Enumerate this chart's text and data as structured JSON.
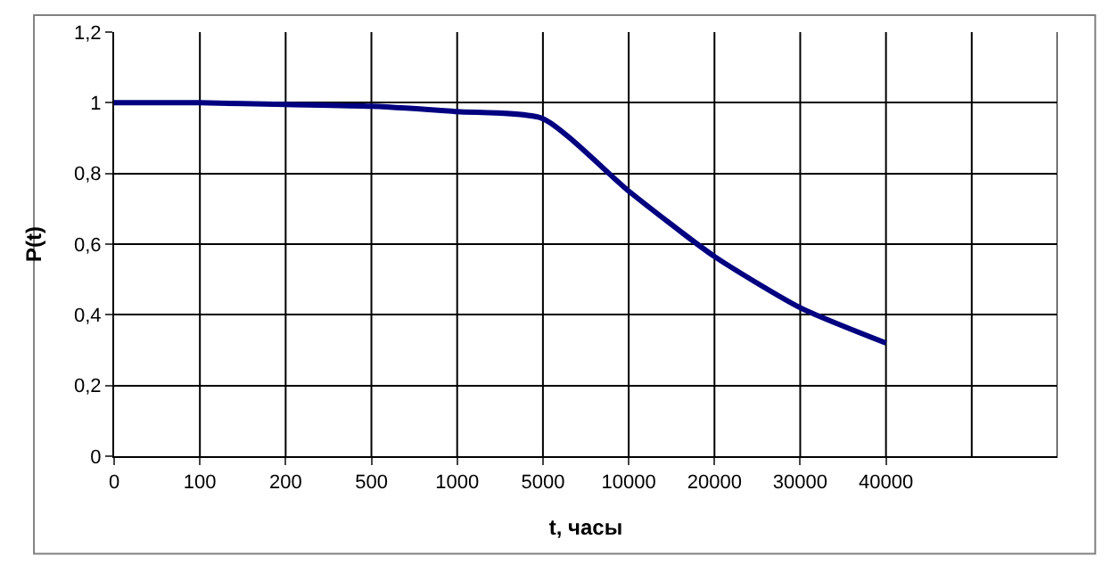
{
  "chart_data": {
    "type": "line",
    "xlabel": "t, часы",
    "ylabel": "P(t)",
    "categories": [
      "0",
      "100",
      "200",
      "500",
      "1000",
      "5000",
      "10000",
      "20000",
      "30000",
      "40000",
      null,
      null
    ],
    "series": [
      {
        "color": "#000080",
        "values": [
          1.0,
          1.0,
          0.995,
          0.99,
          0.975,
          0.955,
          0.75,
          0.565,
          0.42,
          0.32,
          null,
          null
        ]
      }
    ],
    "ylim": [
      0,
      1.2
    ],
    "yticks": [
      0,
      {
        "value": 0.2,
        "label": "0,2"
      },
      {
        "value": 0.4,
        "label": "0,4"
      },
      {
        "value": 0.6,
        "label": "0,6"
      },
      {
        "value": 0.8,
        "label": "0,8"
      },
      1,
      {
        "value": 1.2,
        "label": "1,2"
      }
    ],
    "grid": true,
    "marker": "none",
    "line_style": "solid"
  }
}
